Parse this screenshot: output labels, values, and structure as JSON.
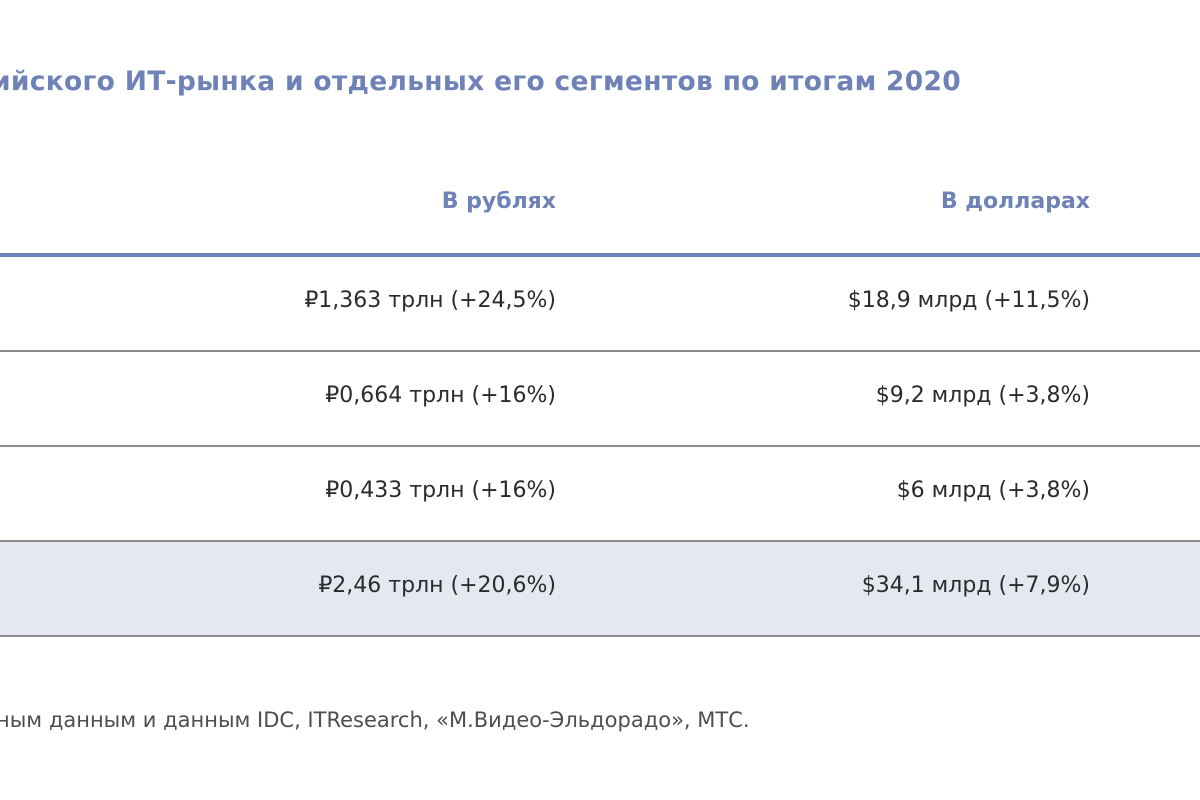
{
  "title": "ийского ИТ-рынка и отдельных его сегментов по итогам 2020",
  "table": {
    "headers": {
      "rub": "В рублях",
      "usd": "В долларах"
    },
    "rows": [
      {
        "rub": "₽1,363 трлн (+24,5%)",
        "usd": "$18,9 млрд (+11,5%)"
      },
      {
        "rub": "₽0,664 трлн (+16%)",
        "usd": "$9,2 млрд (+3,8%)"
      },
      {
        "rub": "₽0,433 трлн (+16%)",
        "usd": "$6 млрд (+3,8%)"
      },
      {
        "rub": "₽2,46 трлн (+20,6%)",
        "usd": "$34,1 млрд (+7,9%)"
      }
    ]
  },
  "footnote": "ным данным и данным IDC, ITResearch, «М.Видео-Эльдорадо», МТС.",
  "colors": {
    "accent": "#6f82b8",
    "total_row_bg": "#e4e8f0",
    "divider": "#8a8a8a"
  }
}
